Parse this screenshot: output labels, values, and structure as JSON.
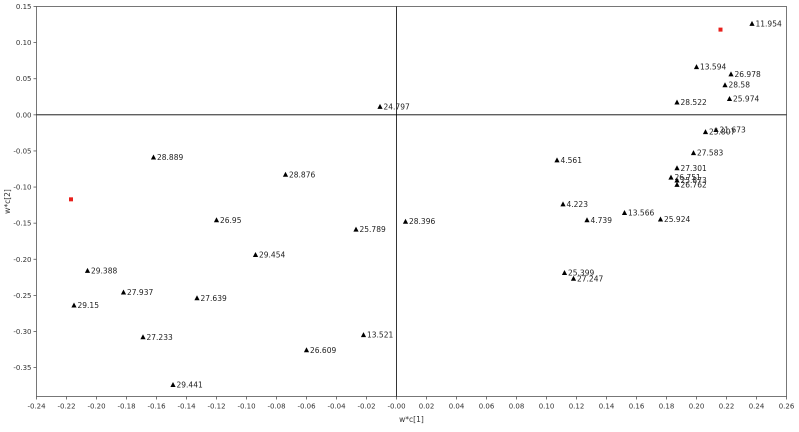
{
  "chart_data": {
    "type": "scatter",
    "xlabel": "w*c[1]",
    "ylabel": "w*c[2]",
    "xlim": [
      -0.24,
      0.26
    ],
    "ylim": [
      -0.39,
      0.15
    ],
    "xticks": [
      -0.24,
      -0.22,
      -0.2,
      -0.18,
      -0.16,
      -0.14,
      -0.12,
      -0.1,
      -0.08,
      -0.06,
      -0.04,
      -0.02,
      0,
      0.02,
      0.04,
      0.06,
      0.08,
      0.1,
      0.12,
      0.14,
      0.16,
      0.18,
      0.2,
      0.22,
      0.24,
      0.26
    ],
    "xtick_labels": [
      "-0.24",
      "-0.22",
      "-0.20",
      "-0.18",
      "-0.16",
      "-0.14",
      "-0.12",
      "-0.10",
      "-0.08",
      "-0.06",
      "-0.04",
      "-0.02",
      "-0.00",
      "0.02",
      "0.04",
      "0.06",
      "0.08",
      "0.10",
      "0.12",
      "0.14",
      "0.16",
      "0.18",
      "0.20",
      "0.22",
      "0.24",
      "0.26"
    ],
    "yticks": [
      0.15,
      0.1,
      0.05,
      0,
      -0.05,
      -0.1,
      -0.15,
      -0.2,
      -0.25,
      -0.3,
      -0.35
    ],
    "ytick_labels": [
      "0.15",
      "0.10",
      "0.05",
      "0.00",
      "-0.05",
      "-0.10",
      "-0.15",
      "-0.20",
      "-0.25",
      "-0.30",
      "-0.35"
    ],
    "grid": false,
    "zero_lines": true,
    "colors": {
      "points": "#000000",
      "highlight": "#e8201c",
      "axis": "#555555"
    },
    "series": [
      {
        "marker": "triangle",
        "points": [
          {
            "x": 0.237,
            "y": 0.126,
            "label": "11.954"
          },
          {
            "x": 0.2,
            "y": 0.066,
            "label": "13.594"
          },
          {
            "x": 0.223,
            "y": 0.056,
            "label": "26.978"
          },
          {
            "x": 0.219,
            "y": 0.041,
            "label": "28.58"
          },
          {
            "x": 0.187,
            "y": 0.017,
            "label": "28.522"
          },
          {
            "x": 0.222,
            "y": 0.022,
            "label": "25.974"
          },
          {
            "x": -0.011,
            "y": 0.011,
            "label": "24.797"
          },
          {
            "x": 0.213,
            "y": -0.021,
            "label": "21.673"
          },
          {
            "x": 0.206,
            "y": -0.024,
            "label": "25.807"
          },
          {
            "x": 0.198,
            "y": -0.053,
            "label": "27.583"
          },
          {
            "x": 0.107,
            "y": -0.063,
            "label": "4.561"
          },
          {
            "x": -0.162,
            "y": -0.059,
            "label": "28.889"
          },
          {
            "x": 0.187,
            "y": -0.074,
            "label": "27.301"
          },
          {
            "x": 0.183,
            "y": -0.087,
            "label": "26.751"
          },
          {
            "x": 0.187,
            "y": -0.091,
            "label": "25.873"
          },
          {
            "x": 0.187,
            "y": -0.097,
            "label": "26.762"
          },
          {
            "x": -0.074,
            "y": -0.083,
            "label": "28.876"
          },
          {
            "x": 0.111,
            "y": -0.124,
            "label": "4.223"
          },
          {
            "x": 0.152,
            "y": -0.136,
            "label": "13.566"
          },
          {
            "x": 0.127,
            "y": -0.146,
            "label": "4.739"
          },
          {
            "x": 0.176,
            "y": -0.145,
            "label": "25.924"
          },
          {
            "x": -0.12,
            "y": -0.146,
            "label": "26.95"
          },
          {
            "x": 0.006,
            "y": -0.148,
            "label": "28.396"
          },
          {
            "x": -0.027,
            "y": -0.159,
            "label": "25.789"
          },
          {
            "x": -0.094,
            "y": -0.194,
            "label": "29.454"
          },
          {
            "x": -0.206,
            "y": -0.216,
            "label": "29.388"
          },
          {
            "x": 0.112,
            "y": -0.219,
            "label": "25.399"
          },
          {
            "x": 0.118,
            "y": -0.227,
            "label": "27.247"
          },
          {
            "x": -0.182,
            "y": -0.246,
            "label": "27.937"
          },
          {
            "x": -0.133,
            "y": -0.254,
            "label": "27.639"
          },
          {
            "x": -0.215,
            "y": -0.264,
            "label": "29.15"
          },
          {
            "x": -0.022,
            "y": -0.305,
            "label": "13.521"
          },
          {
            "x": -0.169,
            "y": -0.308,
            "label": "27.233"
          },
          {
            "x": -0.06,
            "y": -0.326,
            "label": "26.609"
          },
          {
            "x": -0.149,
            "y": -0.374,
            "label": "29.441"
          }
        ]
      },
      {
        "marker": "square",
        "points": [
          {
            "x": 0.216,
            "y": 0.118
          },
          {
            "x": -0.217,
            "y": -0.117
          }
        ]
      }
    ]
  }
}
